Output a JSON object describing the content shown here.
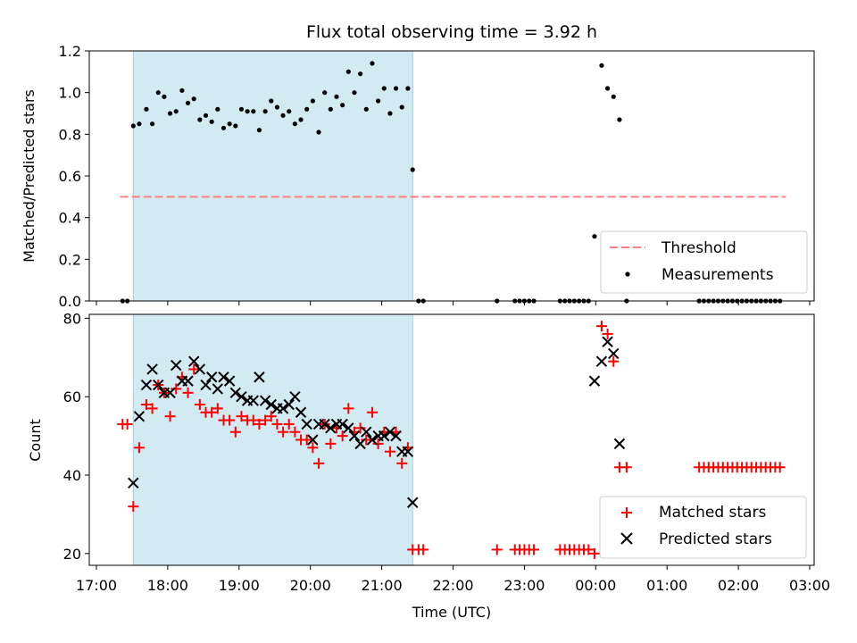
{
  "chart_data": [
    {
      "type": "scatter",
      "title": "Flux total observing time = 3.92 h",
      "ylabel": "Matched/Predicted stars",
      "xlim": [
        "17:00",
        "03:00"
      ],
      "ylim": [
        0,
        1.2
      ],
      "yticks": [
        "0.0",
        "0.2",
        "0.4",
        "0.6",
        "0.8",
        "1.0",
        "1.2"
      ],
      "highlight": {
        "x0": "17:31",
        "x1": "21:26",
        "color": "#add8e6"
      },
      "legend": {
        "placement": "lower-right",
        "entries": [
          "Threshold",
          "Measurements"
        ]
      },
      "threshold": {
        "name": "Threshold",
        "value": 0.5,
        "x0": "17:20",
        "x1": "02:40",
        "color": "#ff7f7f"
      },
      "series": [
        {
          "name": "Measurements",
          "color": "#000000",
          "points": [
            [
              "17:22",
              0
            ],
            [
              "17:26",
              0
            ],
            [
              "17:31",
              0.84
            ],
            [
              "17:36",
              0.85
            ],
            [
              "17:42",
              0.92
            ],
            [
              "17:47",
              0.85
            ],
            [
              "17:52",
              1.0
            ],
            [
              "17:57",
              0.98
            ],
            [
              "18:02",
              0.9
            ],
            [
              "18:07",
              0.91
            ],
            [
              "18:12",
              1.01
            ],
            [
              "18:17",
              0.95
            ],
            [
              "18:22",
              0.97
            ],
            [
              "18:27",
              0.87
            ],
            [
              "18:32",
              0.89
            ],
            [
              "18:37",
              0.86
            ],
            [
              "18:42",
              0.92
            ],
            [
              "18:47",
              0.83
            ],
            [
              "18:52",
              0.85
            ],
            [
              "18:57",
              0.84
            ],
            [
              "19:02",
              0.92
            ],
            [
              "19:07",
              0.91
            ],
            [
              "19:12",
              0.91
            ],
            [
              "19:17",
              0.82
            ],
            [
              "19:22",
              0.91
            ],
            [
              "19:27",
              0.96
            ],
            [
              "19:32",
              0.93
            ],
            [
              "19:37",
              0.89
            ],
            [
              "19:42",
              0.91
            ],
            [
              "19:47",
              0.85
            ],
            [
              "19:52",
              0.87
            ],
            [
              "19:57",
              0.92
            ],
            [
              "20:02",
              0.96
            ],
            [
              "20:07",
              0.81
            ],
            [
              "20:12",
              1.0
            ],
            [
              "20:17",
              0.92
            ],
            [
              "20:22",
              0.98
            ],
            [
              "20:27",
              0.94
            ],
            [
              "20:32",
              1.1
            ],
            [
              "20:37",
              1.0
            ],
            [
              "20:42",
              1.09
            ],
            [
              "20:47",
              0.92
            ],
            [
              "20:52",
              1.14
            ],
            [
              "20:57",
              0.96
            ],
            [
              "21:02",
              1.02
            ],
            [
              "21:07",
              0.9
            ],
            [
              "21:12",
              1.02
            ],
            [
              "21:17",
              0.93
            ],
            [
              "21:22",
              1.02
            ],
            [
              "21:26",
              0.63
            ],
            [
              "21:31",
              0
            ],
            [
              "21:35",
              0
            ],
            [
              "22:37",
              0
            ],
            [
              "22:52",
              0
            ],
            [
              "22:56",
              0
            ],
            [
              "23:00",
              0
            ],
            [
              "23:04",
              0
            ],
            [
              "23:08",
              0
            ],
            [
              "23:30",
              0
            ],
            [
              "23:34",
              0
            ],
            [
              "23:38",
              0
            ],
            [
              "23:42",
              0
            ],
            [
              "23:46",
              0
            ],
            [
              "23:50",
              0
            ],
            [
              "23:54",
              0
            ],
            [
              "23:59",
              0.31
            ],
            [
              "00:05",
              1.13
            ],
            [
              "00:10",
              1.02
            ],
            [
              "00:15",
              0.98
            ],
            [
              "00:20",
              0.87
            ],
            [
              "00:26",
              0
            ],
            [
              "01:27",
              0
            ],
            [
              "01:31",
              0
            ],
            [
              "01:35",
              0
            ],
            [
              "01:39",
              0
            ],
            [
              "01:43",
              0
            ],
            [
              "01:47",
              0
            ],
            [
              "01:51",
              0
            ],
            [
              "01:55",
              0
            ],
            [
              "01:59",
              0
            ],
            [
              "02:03",
              0
            ],
            [
              "02:07",
              0
            ],
            [
              "02:11",
              0
            ],
            [
              "02:15",
              0
            ],
            [
              "02:19",
              0
            ],
            [
              "02:23",
              0
            ],
            [
              "02:27",
              0
            ],
            [
              "02:31",
              0
            ],
            [
              "02:35",
              0
            ]
          ]
        }
      ]
    },
    {
      "type": "scatter",
      "xlabel": "Time (UTC)",
      "ylabel": "Count",
      "xlim": [
        "17:00",
        "03:00"
      ],
      "ylim": [
        17,
        81
      ],
      "yticks": [
        "20",
        "40",
        "60",
        "80"
      ],
      "xticks": [
        "17:00",
        "18:00",
        "19:00",
        "20:00",
        "21:00",
        "22:00",
        "23:00",
        "00:00",
        "01:00",
        "02:00",
        "03:00"
      ],
      "highlight": {
        "x0": "17:31",
        "x1": "21:26",
        "color": "#add8e6"
      },
      "legend": {
        "placement": "lower-right",
        "entries": [
          "Matched stars",
          "Predicted stars"
        ]
      },
      "series": [
        {
          "name": "Matched stars",
          "marker": "plus",
          "color": "#ff0000",
          "points": [
            [
              "17:22",
              53
            ],
            [
              "17:26",
              53
            ],
            [
              "17:31",
              32
            ],
            [
              "17:36",
              47
            ],
            [
              "17:42",
              58
            ],
            [
              "17:47",
              57
            ],
            [
              "17:52",
              63
            ],
            [
              "17:57",
              61
            ],
            [
              "18:02",
              55
            ],
            [
              "18:07",
              62
            ],
            [
              "18:12",
              65
            ],
            [
              "18:17",
              61
            ],
            [
              "18:22",
              67
            ],
            [
              "18:27",
              58
            ],
            [
              "18:32",
              56
            ],
            [
              "18:37",
              56
            ],
            [
              "18:42",
              57
            ],
            [
              "18:47",
              54
            ],
            [
              "18:52",
              54
            ],
            [
              "18:57",
              51
            ],
            [
              "19:02",
              55
            ],
            [
              "19:07",
              54
            ],
            [
              "19:12",
              54
            ],
            [
              "19:17",
              53
            ],
            [
              "19:22",
              54
            ],
            [
              "19:27",
              55
            ],
            [
              "19:32",
              53
            ],
            [
              "19:37",
              51
            ],
            [
              "19:42",
              53
            ],
            [
              "19:47",
              51
            ],
            [
              "19:52",
              49
            ],
            [
              "19:57",
              49
            ],
            [
              "20:02",
              47
            ],
            [
              "20:07",
              43
            ],
            [
              "20:12",
              53
            ],
            [
              "20:17",
              48
            ],
            [
              "20:22",
              52
            ],
            [
              "20:27",
              50
            ],
            [
              "20:32",
              57
            ],
            [
              "20:37",
              51
            ],
            [
              "20:42",
              52
            ],
            [
              "20:47",
              49
            ],
            [
              "20:52",
              56
            ],
            [
              "20:57",
              48
            ],
            [
              "21:02",
              51
            ],
            [
              "21:07",
              46
            ],
            [
              "21:12",
              51
            ],
            [
              "21:17",
              43
            ],
            [
              "21:22",
              47
            ],
            [
              "21:26",
              21
            ],
            [
              "21:31",
              21
            ],
            [
              "21:35",
              21
            ],
            [
              "22:37",
              21
            ],
            [
              "22:52",
              21
            ],
            [
              "22:56",
              21
            ],
            [
              "23:00",
              21
            ],
            [
              "23:04",
              21
            ],
            [
              "23:08",
              21
            ],
            [
              "23:30",
              21
            ],
            [
              "23:34",
              21
            ],
            [
              "23:38",
              21
            ],
            [
              "23:42",
              21
            ],
            [
              "23:46",
              21
            ],
            [
              "23:50",
              21
            ],
            [
              "23:54",
              21
            ],
            [
              "23:59",
              20
            ],
            [
              "00:05",
              78
            ],
            [
              "00:10",
              76
            ],
            [
              "00:15",
              69
            ],
            [
              "00:20",
              42
            ],
            [
              "00:26",
              42
            ],
            [
              "01:27",
              42
            ],
            [
              "01:31",
              42
            ],
            [
              "01:35",
              42
            ],
            [
              "01:39",
              42
            ],
            [
              "01:43",
              42
            ],
            [
              "01:47",
              42
            ],
            [
              "01:51",
              42
            ],
            [
              "01:55",
              42
            ],
            [
              "01:59",
              42
            ],
            [
              "02:03",
              42
            ],
            [
              "02:07",
              42
            ],
            [
              "02:11",
              42
            ],
            [
              "02:15",
              42
            ],
            [
              "02:19",
              42
            ],
            [
              "02:23",
              42
            ],
            [
              "02:27",
              42
            ],
            [
              "02:31",
              42
            ],
            [
              "02:35",
              42
            ]
          ]
        },
        {
          "name": "Predicted stars",
          "marker": "x",
          "color": "#000000",
          "points": [
            [
              "17:31",
              38
            ],
            [
              "17:36",
              55
            ],
            [
              "17:42",
              63
            ],
            [
              "17:47",
              67
            ],
            [
              "17:52",
              63
            ],
            [
              "17:57",
              61
            ],
            [
              "18:02",
              61
            ],
            [
              "18:07",
              68
            ],
            [
              "18:12",
              64
            ],
            [
              "18:17",
              64
            ],
            [
              "18:22",
              69
            ],
            [
              "18:27",
              67
            ],
            [
              "18:32",
              63
            ],
            [
              "18:37",
              65
            ],
            [
              "18:42",
              62
            ],
            [
              "18:47",
              65
            ],
            [
              "18:52",
              64
            ],
            [
              "18:57",
              61
            ],
            [
              "19:02",
              60
            ],
            [
              "19:07",
              59
            ],
            [
              "19:12",
              59
            ],
            [
              "19:17",
              65
            ],
            [
              "19:22",
              59
            ],
            [
              "19:27",
              58
            ],
            [
              "19:32",
              57
            ],
            [
              "19:37",
              57
            ],
            [
              "19:42",
              58
            ],
            [
              "19:47",
              60
            ],
            [
              "19:52",
              56
            ],
            [
              "19:57",
              53
            ],
            [
              "20:02",
              49
            ],
            [
              "20:07",
              53
            ],
            [
              "20:12",
              53
            ],
            [
              "20:17",
              52
            ],
            [
              "20:22",
              53
            ],
            [
              "20:27",
              53
            ],
            [
              "20:32",
              52
            ],
            [
              "20:37",
              50
            ],
            [
              "20:42",
              48
            ],
            [
              "20:47",
              51
            ],
            [
              "20:52",
              49
            ],
            [
              "20:57",
              50
            ],
            [
              "21:02",
              50
            ],
            [
              "21:07",
              51
            ],
            [
              "21:12",
              50
            ],
            [
              "21:17",
              46
            ],
            [
              "21:22",
              46
            ],
            [
              "21:26",
              33
            ],
            [
              "23:59",
              64
            ],
            [
              "00:05",
              69
            ],
            [
              "00:10",
              74
            ],
            [
              "00:15",
              71
            ],
            [
              "00:20",
              48
            ]
          ]
        }
      ]
    }
  ]
}
